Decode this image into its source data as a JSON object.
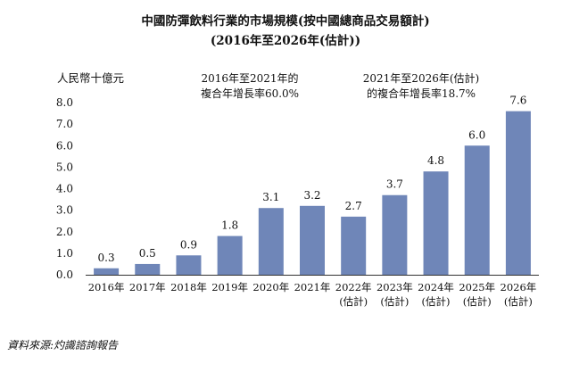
{
  "chart_data": {
    "type": "bar",
    "title": "中國防彈飲料行業的市場規模(按中國總商品交易額計)",
    "subtitle": "(2016年至2026年(估計))",
    "ylabel": "人民幣十億元",
    "ylim": [
      0,
      8.0
    ],
    "yticks": [
      "0.0",
      "1.0",
      "2.0",
      "3.0",
      "4.0",
      "5.0",
      "6.0",
      "7.0",
      "8.0"
    ],
    "categories": [
      [
        "2016年"
      ],
      [
        "2017年"
      ],
      [
        "2018年"
      ],
      [
        "2019年"
      ],
      [
        "2020年"
      ],
      [
        "2021年"
      ],
      [
        "2022年",
        "(估計)"
      ],
      [
        "2023年",
        "(估計)"
      ],
      [
        "2024年",
        "(估計)"
      ],
      [
        "2025年",
        "(估計)"
      ],
      [
        "2026年",
        "(估計)"
      ]
    ],
    "values": [
      0.3,
      0.5,
      0.9,
      1.8,
      3.1,
      3.2,
      2.7,
      3.7,
      4.8,
      6.0,
      7.6
    ],
    "value_labels": [
      "0.3",
      "0.5",
      "0.9",
      "1.8",
      "3.1",
      "3.2",
      "2.7",
      "3.7",
      "4.8",
      "6.0",
      "7.6"
    ],
    "annotations": [
      {
        "lines": [
          "2016年至2021年的",
          "複合年增長率60.0%"
        ]
      },
      {
        "lines": [
          "2021年至2026年(估計)",
          "的複合年增長率18.7%"
        ]
      }
    ],
    "bar_color": "#6f86b8",
    "grid": false,
    "legend": "none"
  },
  "source": "資料來源:灼識諮詢報告"
}
